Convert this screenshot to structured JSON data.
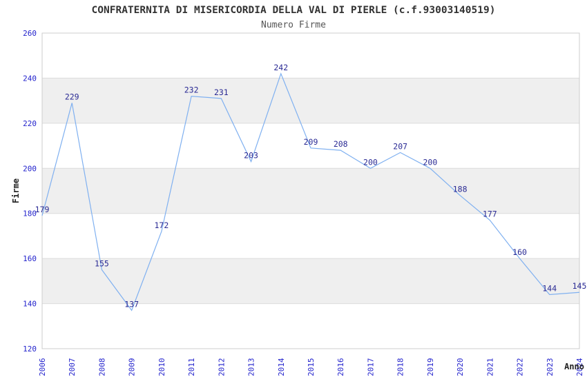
{
  "chart_data": {
    "type": "line",
    "title": "CONFRATERNITA DI MISERICORDIA DELLA VAL DI PIERLE (c.f.93003140519)",
    "subtitle": "Numero Firme",
    "xlabel": "Anno",
    "ylabel": "Firme",
    "categories": [
      "2006",
      "2007",
      "2008",
      "2009",
      "2010",
      "2011",
      "2012",
      "2013",
      "2014",
      "2015",
      "2016",
      "2017",
      "2018",
      "2019",
      "2020",
      "2021",
      "2022",
      "2023",
      "2024"
    ],
    "values": [
      179,
      229,
      155,
      137,
      172,
      232,
      231,
      203,
      242,
      209,
      208,
      200,
      207,
      200,
      188,
      177,
      160,
      144,
      145
    ],
    "ylim": [
      120,
      260
    ],
    "yticks": [
      120,
      140,
      160,
      180,
      200,
      220,
      240,
      260
    ],
    "shaded_bands": [
      [
        140,
        160
      ],
      [
        180,
        200
      ],
      [
        220,
        240
      ]
    ],
    "grid": "horizontal",
    "legend": "none",
    "x_tick_rotation": -90,
    "data_labels": "shown above each point",
    "colors": {
      "line": "#7fb0f0",
      "data_label": "#2a2a94",
      "tick_label": "#2222cc",
      "band": "#efefef",
      "gridline": "#dcdcdc",
      "border": "#cccccc",
      "title": "#333333",
      "subtitle": "#555555",
      "axis_title": "#222222",
      "background": "#ffffff"
    }
  }
}
